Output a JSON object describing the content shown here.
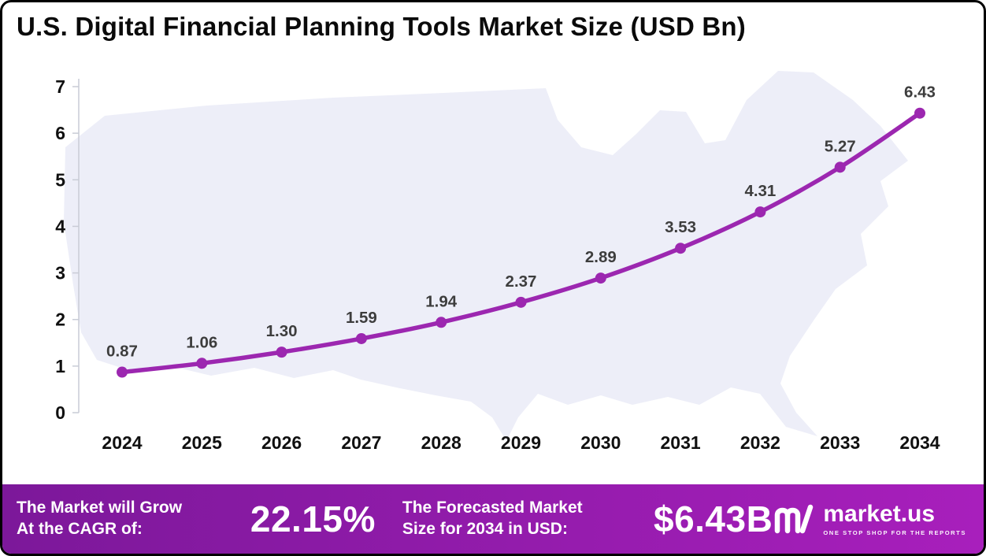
{
  "title": "U.S. Digital Financial Planning Tools Market Size (USD Bn)",
  "chart_data": {
    "type": "line",
    "title": "U.S. Digital Financial Planning Tools Market Size (USD Bn)",
    "categories": [
      "2024",
      "2025",
      "2026",
      "2027",
      "2028",
      "2029",
      "2030",
      "2031",
      "2032",
      "2033",
      "2034"
    ],
    "values": [
      0.87,
      1.06,
      1.3,
      1.59,
      1.94,
      2.37,
      2.89,
      3.53,
      4.31,
      5.27,
      6.43
    ],
    "xlabel": "",
    "ylabel": "",
    "ylim": [
      0,
      7
    ],
    "yticks": [
      0,
      1,
      2,
      3,
      4,
      5,
      6,
      7
    ],
    "grid": false,
    "legend": "none",
    "line_color": "#9c27b0",
    "marker_color": "#9c27b0",
    "value_label_color": "#3d3d3d",
    "axis_label_color": "#101010",
    "map_fill": "#edeef8"
  },
  "banner": {
    "cagr_label_line1": "The Market will Grow",
    "cagr_label_line2": "At the CAGR of:",
    "cagr_value": "22.15%",
    "forecast_label_line1": "The Forecasted Market",
    "forecast_label_line2": "Size for 2034 in USD:",
    "forecast_value": "$6.43B",
    "brand": "market.us",
    "brand_tagline": "ONE STOP SHOP FOR THE REPORTS",
    "gradient_start": "#7c189a",
    "gradient_end": "#a81fbc"
  }
}
